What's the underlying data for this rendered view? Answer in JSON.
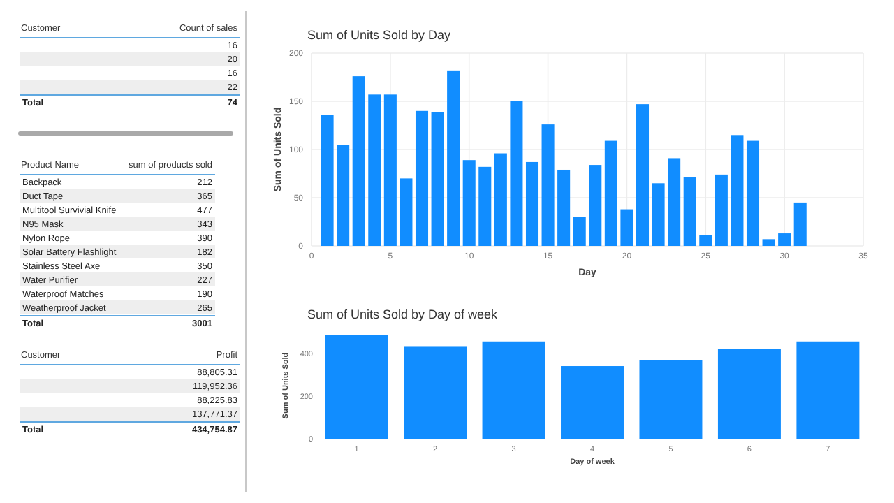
{
  "chart_data": [
    {
      "type": "other",
      "xlabel": "Customer",
      "ylabel": "Count of sales",
      "categories": [
        null,
        null,
        null,
        null,
        "Total"
      ],
      "values": [
        16,
        20,
        16,
        22,
        74
      ],
      "data_labels": true
    },
    {
      "type": "other",
      "xlabel": "Product Name",
      "ylabel": "sum of products sold",
      "categories": [
        "Backpack",
        "Duct Tape",
        "Multitool Survivial Knife",
        "N95 Mask",
        "Nylon Rope",
        "Solar Battery Flashlight",
        "Stainless Steel Axe",
        "Water Purifier",
        "Waterproof Matches",
        "Weatherproof Jacket",
        "Total"
      ],
      "values": [
        212,
        365,
        477,
        343,
        390,
        182,
        350,
        227,
        190,
        265,
        3001
      ],
      "data_labels": true
    },
    {
      "type": "other",
      "xlabel": "Customer",
      "ylabel": "Profit",
      "categories": [
        null,
        null,
        null,
        null,
        "Total"
      ],
      "value_labels": [
        "88,805.31",
        "119,952.36",
        "88,225.83",
        "137,771.37",
        "434,754.87"
      ]
    },
    {
      "type": "bar",
      "title": "Sum of Units Sold by Day",
      "xlabel": "Day",
      "ylabel": "Sum of Units Sold",
      "color": "#118dff",
      "grid": true,
      "x": [
        1,
        2,
        3,
        4,
        5,
        6,
        7,
        8,
        9,
        10,
        11,
        12,
        13,
        14,
        15,
        16,
        17,
        18,
        19,
        20,
        21,
        22,
        23,
        24,
        25,
        26,
        27,
        28,
        29,
        30,
        31
      ],
      "values": [
        136,
        105,
        176,
        157,
        157,
        70,
        140,
        139,
        182,
        89,
        82,
        96,
        150,
        87,
        126,
        79,
        30,
        84,
        109,
        38,
        147,
        65,
        91,
        71,
        11,
        74,
        115,
        109,
        7,
        13,
        45
      ],
      "xlim": [
        0,
        35
      ],
      "xticks": [
        0,
        5,
        10,
        15,
        20,
        25,
        30,
        35
      ],
      "ylim": [
        0,
        200
      ],
      "yticks": [
        0,
        50,
        100,
        150,
        200
      ]
    },
    {
      "type": "bar",
      "title": "Sum of Units Sold by Day of week",
      "xlabel": "Day of week",
      "ylabel": "Sum of Units Sold",
      "color": "#118dff",
      "categories": [
        "1",
        "2",
        "3",
        "4",
        "5",
        "6",
        "7"
      ],
      "values": [
        487,
        436,
        458,
        342,
        371,
        422,
        458
      ],
      "ylim": [
        0,
        500
      ],
      "yticks": [
        0,
        200,
        400
      ]
    }
  ]
}
